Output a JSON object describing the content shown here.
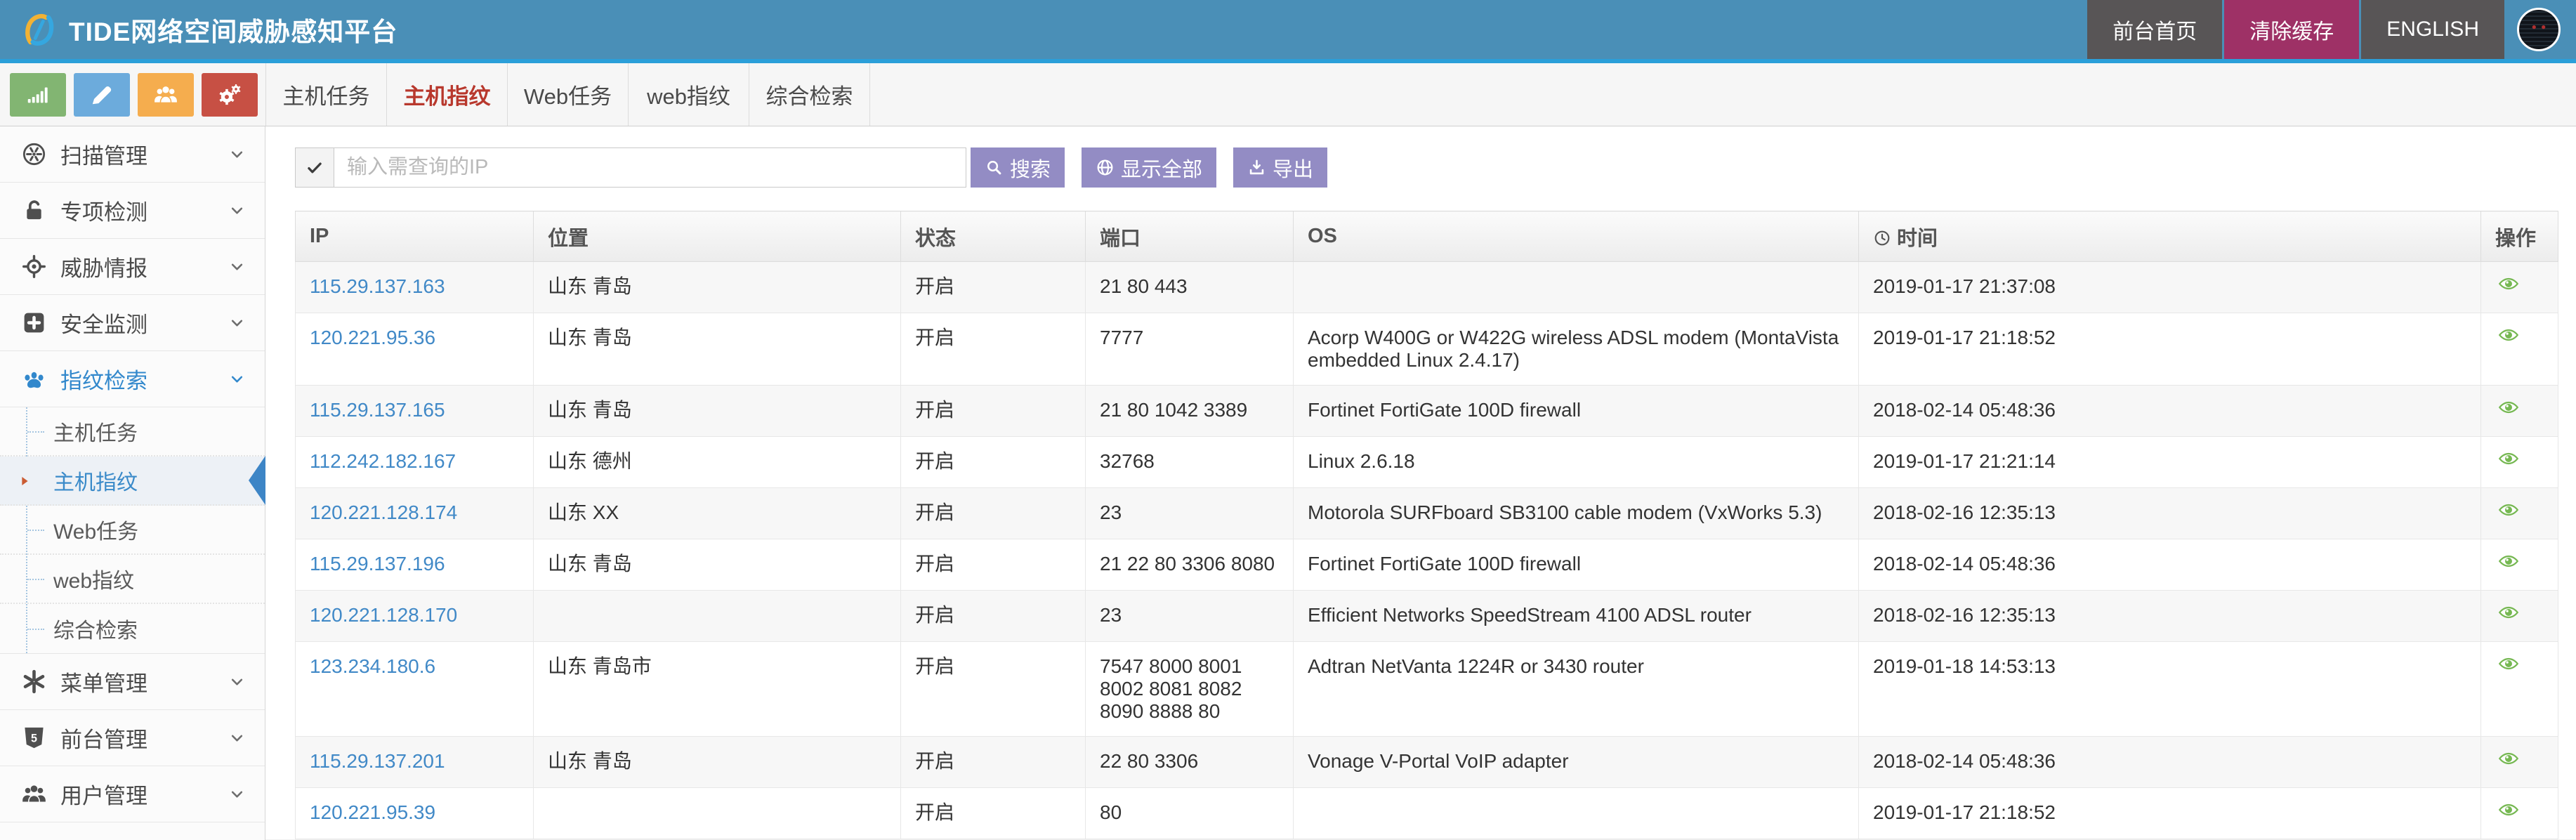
{
  "header": {
    "title": "TIDE网络空间威胁感知平台",
    "nav_items": [
      {
        "label": "前台首页",
        "accent": false,
        "name": "frontend-home-button"
      },
      {
        "label": "清除缓存",
        "accent": true,
        "name": "clear-cache-button"
      },
      {
        "label": "ENGLISH",
        "accent": false,
        "name": "english-button"
      }
    ]
  },
  "tabs": {
    "items": [
      "主机任务",
      "主机指纹",
      "Web任务",
      "web指纹",
      "综合检索"
    ],
    "active": "主机指纹"
  },
  "sidebar": {
    "quick_buttons": [
      {
        "icon": "bar-chart-icon",
        "color": "#82b572"
      },
      {
        "icon": "pencil-icon",
        "color": "#6cabdc"
      },
      {
        "icon": "users-icon",
        "color": "#f5ad4e"
      },
      {
        "icon": "gears-icon",
        "color": "#c75044"
      }
    ],
    "menu": [
      {
        "label": "扫描管理",
        "icon": "scan-icon"
      },
      {
        "label": "专项检测",
        "icon": "unlock-icon"
      },
      {
        "label": "威胁情报",
        "icon": "crosshair-icon"
      },
      {
        "label": "安全监测",
        "icon": "plus-square-icon"
      },
      {
        "label": "指纹检索",
        "icon": "paw-icon",
        "active": true,
        "children": [
          {
            "label": "主机任务"
          },
          {
            "label": "主机指纹",
            "active": true
          },
          {
            "label": "Web任务"
          },
          {
            "label": "web指纹"
          },
          {
            "label": "综合检索"
          }
        ]
      },
      {
        "label": "菜单管理",
        "icon": "burst-icon"
      },
      {
        "label": "前台管理",
        "icon": "html5-icon"
      },
      {
        "label": "用户管理",
        "icon": "users-icon"
      }
    ]
  },
  "search": {
    "placeholder": "输入需查询的IP",
    "buttons": [
      {
        "label": "搜索",
        "icon": "magnifier-icon",
        "name": "search-button"
      },
      {
        "label": "显示全部",
        "icon": "globe-icon",
        "name": "show-all-button"
      },
      {
        "label": "导出",
        "icon": "download-icon",
        "name": "export-button"
      }
    ]
  },
  "table": {
    "columns": [
      {
        "label": "IP"
      },
      {
        "label": "位置"
      },
      {
        "label": "状态"
      },
      {
        "label": "端口"
      },
      {
        "label": "OS"
      },
      {
        "label": "时间",
        "icon": "clock-icon"
      },
      {
        "label": "操作"
      }
    ],
    "rows": [
      {
        "ip": "115.29.137.163",
        "location": "山东 青岛",
        "status": "开启",
        "ports": "21 80 443",
        "os": "",
        "time": "2019-01-17 21:37:08"
      },
      {
        "ip": "120.221.95.36",
        "location": "山东 青岛",
        "status": "开启",
        "ports": "7777",
        "os": "Acorp W400G or W422G wireless ADSL modem (MontaVista embedded Linux 2.4.17)",
        "time": "2019-01-17 21:18:52"
      },
      {
        "ip": "115.29.137.165",
        "location": "山东 青岛",
        "status": "开启",
        "ports": "21 80 1042 3389",
        "os": "Fortinet FortiGate 100D firewall",
        "time": "2018-02-14 05:48:36"
      },
      {
        "ip": "112.242.182.167",
        "location": "山东 德州",
        "status": "开启",
        "ports": "32768",
        "os": "Linux 2.6.18",
        "time": "2019-01-17 21:21:14"
      },
      {
        "ip": "120.221.128.174",
        "location": "山东 XX",
        "status": "开启",
        "ports": "23",
        "os": "Motorola SURFboard SB3100 cable modem (VxWorks 5.3)",
        "time": "2018-02-16 12:35:13"
      },
      {
        "ip": "115.29.137.196",
        "location": "山东 青岛",
        "status": "开启",
        "ports": "21 22 80 3306 8080",
        "os": "Fortinet FortiGate 100D firewall",
        "time": "2018-02-14 05:48:36"
      },
      {
        "ip": "120.221.128.170",
        "location": "",
        "status": "开启",
        "ports": "23",
        "os": "Efficient Networks SpeedStream 4100 ADSL router",
        "time": "2018-02-16 12:35:13"
      },
      {
        "ip": "123.234.180.6",
        "location": "山东 青岛市",
        "status": "开启",
        "ports": "7547 8000 8001 8002 8081 8082 8090 8888 80",
        "os": "Adtran NetVanta 1224R or 3430 router",
        "time": "2019-01-18 14:53:13"
      },
      {
        "ip": "115.29.137.201",
        "location": "山东 青岛",
        "status": "开启",
        "ports": "22 80 3306",
        "os": "Vonage V-Portal VoIP adapter",
        "time": "2018-02-14 05:48:36"
      },
      {
        "ip": "120.221.95.39",
        "location": "",
        "status": "开启",
        "ports": "80",
        "os": "",
        "time": "2019-01-17 21:18:52"
      }
    ]
  },
  "colors": {
    "header_bg": "#4a8fb7",
    "header_border": "#2b9fd9",
    "accent_button": "#9e3166",
    "tab_active": "#b8382d",
    "link_blue": "#4189c7",
    "purple_button": "#938cc4",
    "eye_green": "#76b852",
    "active_blue": "#3a8ac9"
  }
}
